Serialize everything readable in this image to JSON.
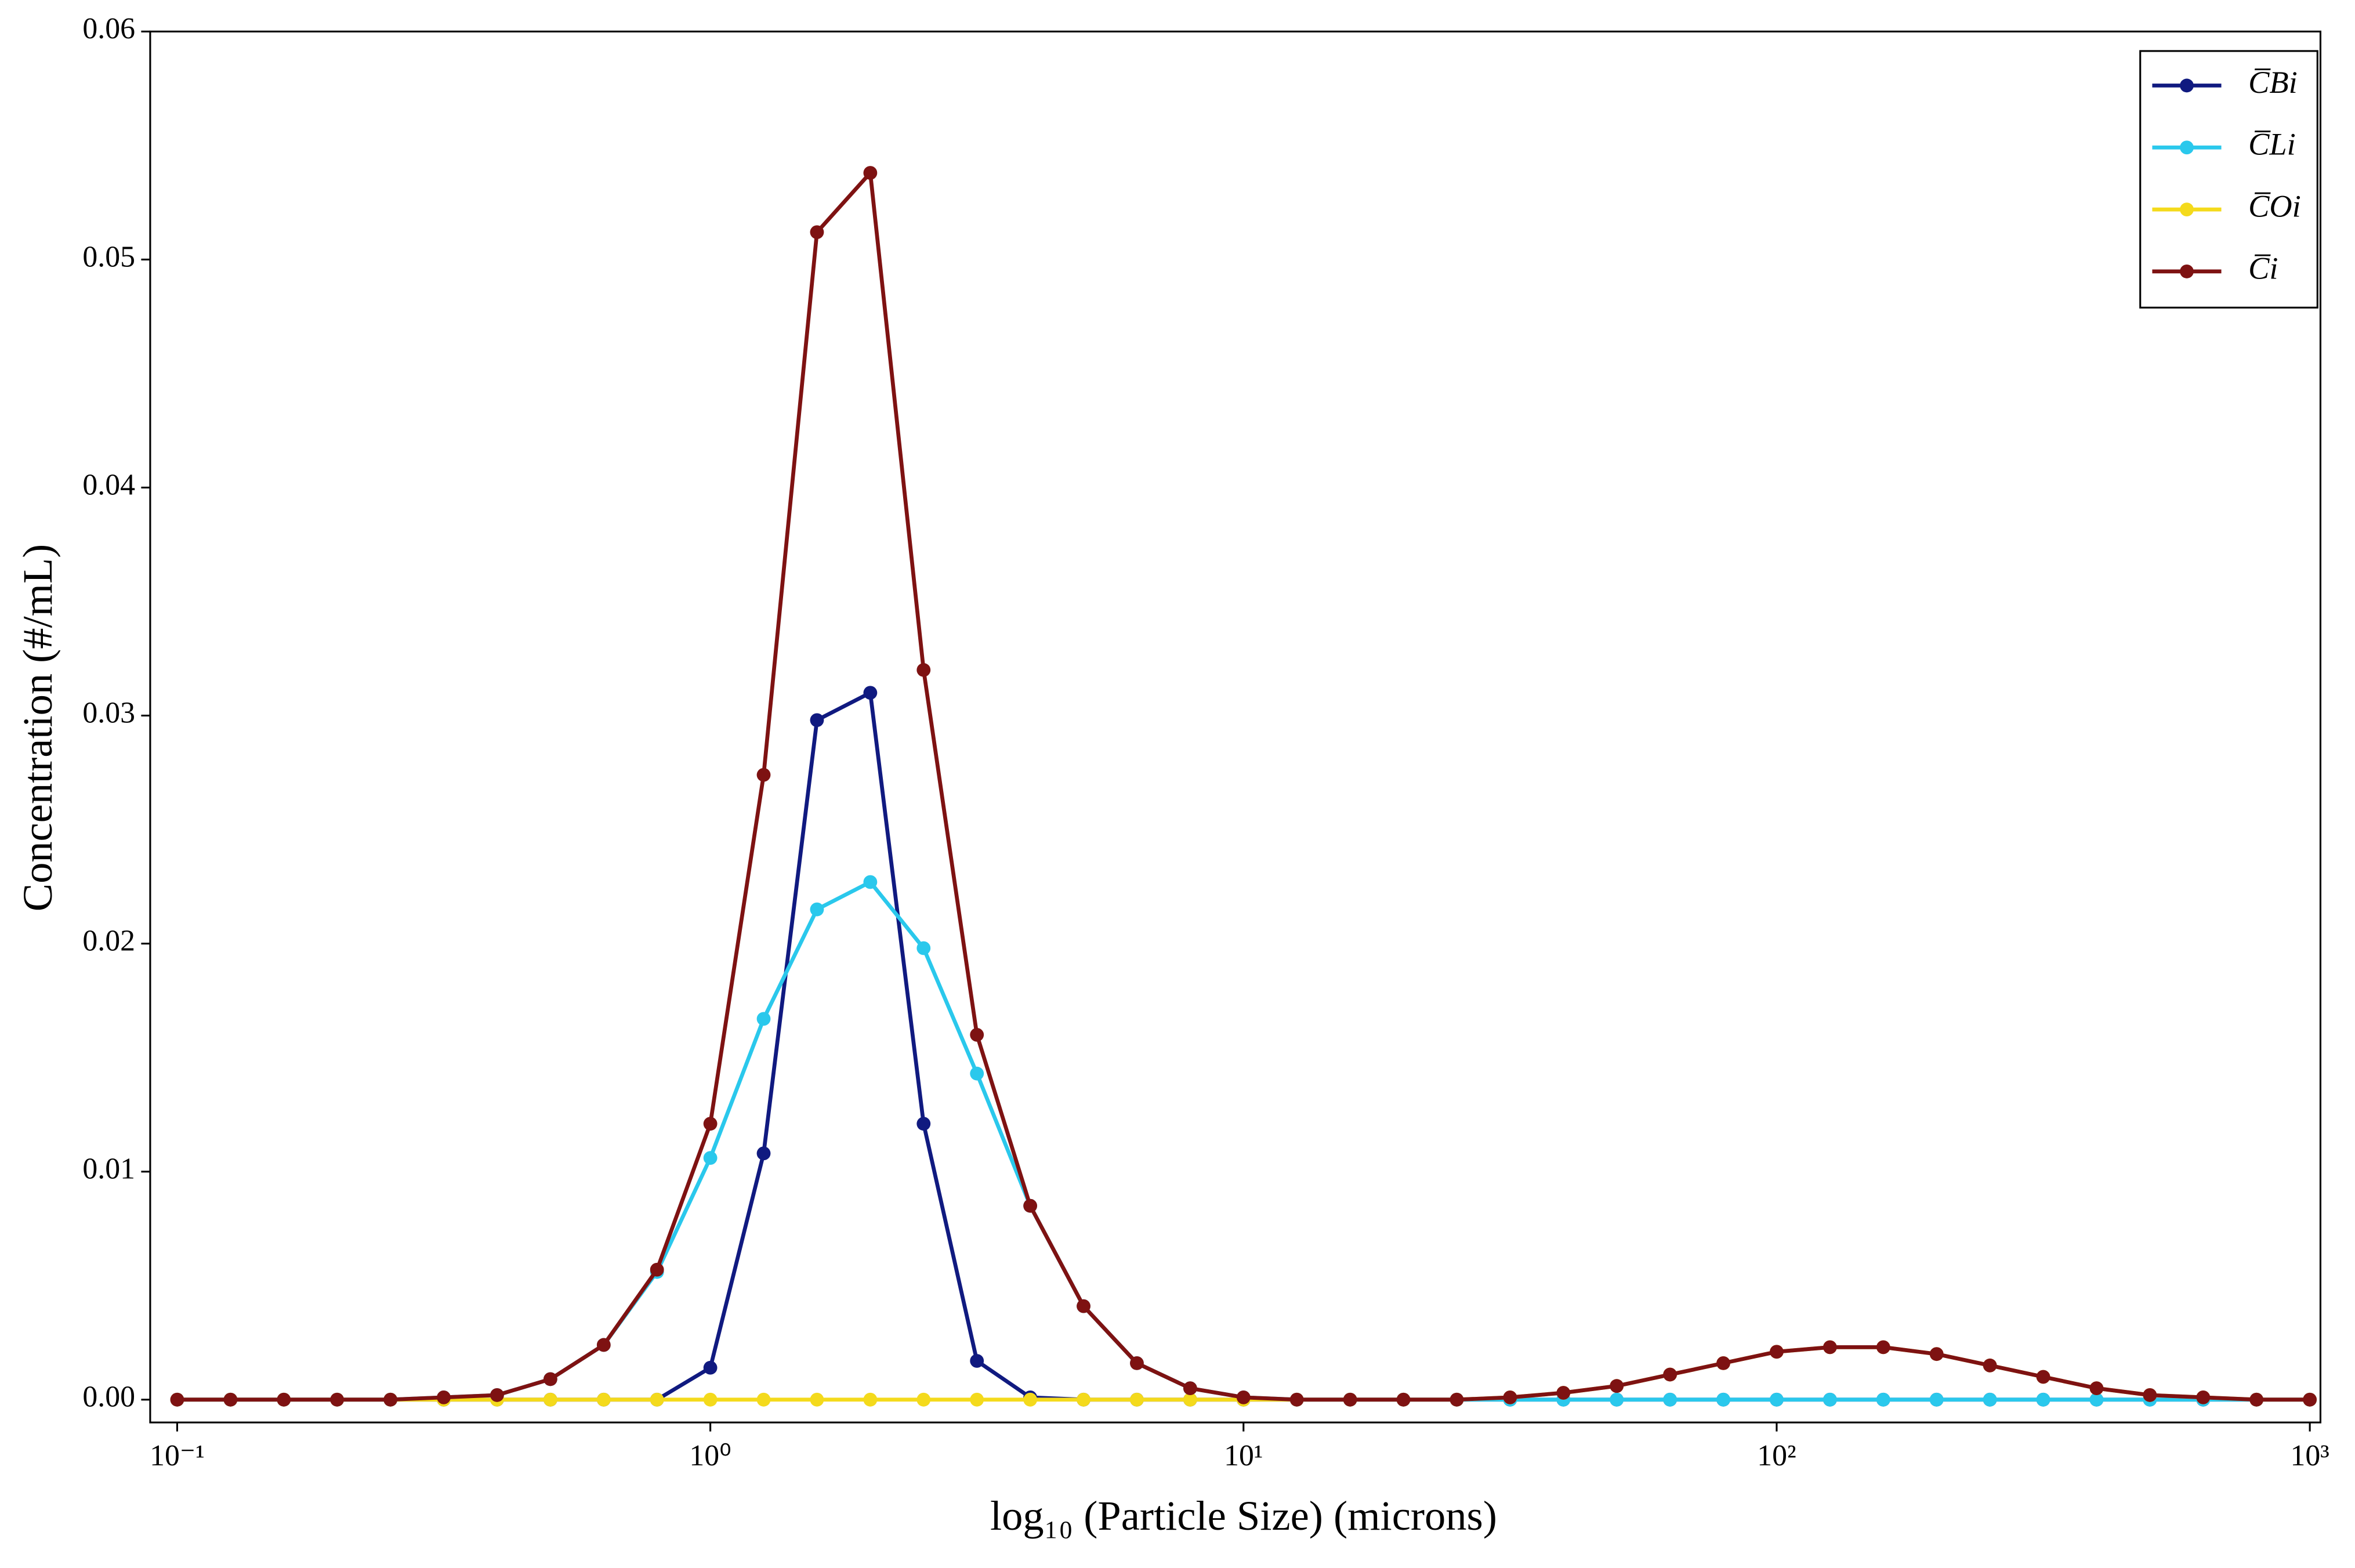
{
  "chart_data": {
    "type": "line",
    "xlabel": "log₁₀ (Particle Size) (microns)",
    "ylabel": "Concentration (#/mL)",
    "xscale": "log",
    "x": [
      0.1,
      0.1259,
      0.1585,
      0.1995,
      0.2512,
      0.3162,
      0.3981,
      0.5012,
      0.631,
      0.7943,
      1,
      1.2589,
      1.5849,
      1.9953,
      2.5119,
      3.1623,
      3.9811,
      5.0119,
      6.3096,
      7.9433,
      10,
      12.589,
      15.849,
      19.953,
      25.119,
      31.623,
      39.811,
      50.119,
      63.096,
      79.433,
      100,
      125.89,
      158.49,
      199.53,
      251.19,
      316.23,
      398.11,
      501.19,
      630.96,
      794.33,
      1000
    ],
    "series": [
      {
        "name": "C̅Bi",
        "color": "#101a80",
        "values": [
          0,
          0,
          0,
          0,
          0,
          0,
          0,
          0,
          0,
          0,
          0.0014,
          0.0108,
          0.0298,
          0.031,
          0.0121,
          0.0017,
          0.0001,
          0,
          0,
          0,
          0,
          0,
          0,
          0,
          0,
          0,
          0,
          0,
          0,
          0,
          0,
          0,
          0,
          0,
          0,
          0,
          0,
          0,
          0,
          0,
          0
        ]
      },
      {
        "name": "C̅Li",
        "color": "#2ac8ec",
        "values": [
          0,
          0,
          0,
          0,
          0,
          0.0001,
          0.0002,
          0.0009,
          0.0024,
          0.0056,
          0.0106,
          0.0167,
          0.0215,
          0.0227,
          0.0198,
          0.0143,
          0.0085,
          0.0041,
          0.0016,
          0.0005,
          0.0001,
          0,
          0,
          0,
          0,
          0,
          0,
          0,
          0,
          0,
          0,
          0,
          0,
          0,
          0,
          0,
          0,
          0,
          0,
          0,
          0
        ]
      },
      {
        "name": "C̅Oi",
        "color": "#f4da1c",
        "values": [
          0,
          0,
          0,
          0,
          0,
          0,
          0,
          0,
          0,
          0,
          0,
          0,
          0,
          0,
          0,
          0,
          0,
          0,
          0,
          0,
          0,
          0,
          0,
          0,
          0,
          0.0001,
          0.0003,
          0.0006,
          0.0011,
          0.0016,
          0.0021,
          0.0023,
          0.0023,
          0.002,
          0.0015,
          0.001,
          0.0005,
          0.0002,
          0.0001,
          0,
          0
        ]
      },
      {
        "name": "C̅i",
        "color": "#7e1212",
        "values": [
          0,
          0,
          0,
          0,
          0,
          0.0001,
          0.0002,
          0.0009,
          0.0024,
          0.0057,
          0.0121,
          0.0274,
          0.0512,
          0.0538,
          0.032,
          0.016,
          0.0085,
          0.0041,
          0.0016,
          0.0005,
          0.0001,
          0,
          0,
          0,
          0,
          0.0001,
          0.0003,
          0.0006,
          0.0011,
          0.0016,
          0.0021,
          0.0023,
          0.0023,
          0.002,
          0.0015,
          0.001,
          0.0005,
          0.0002,
          0.0001,
          0,
          0
        ]
      }
    ],
    "xlim": [
      0.089,
      1047
    ],
    "xticks": [
      {
        "value": 0.1,
        "label": "10⁻¹"
      },
      {
        "value": 1,
        "label": "10⁰"
      },
      {
        "value": 10,
        "label": "10¹"
      },
      {
        "value": 100,
        "label": "10²"
      },
      {
        "value": 1000,
        "label": "10³"
      }
    ],
    "ylim": [
      -0.001,
      0.06
    ],
    "yticks": [
      {
        "value": 0,
        "label": "0.00"
      },
      0.01,
      0.02,
      0.03,
      0.04,
      0.05,
      0.06
    ],
    "legend": "upper right",
    "grid": false
  }
}
